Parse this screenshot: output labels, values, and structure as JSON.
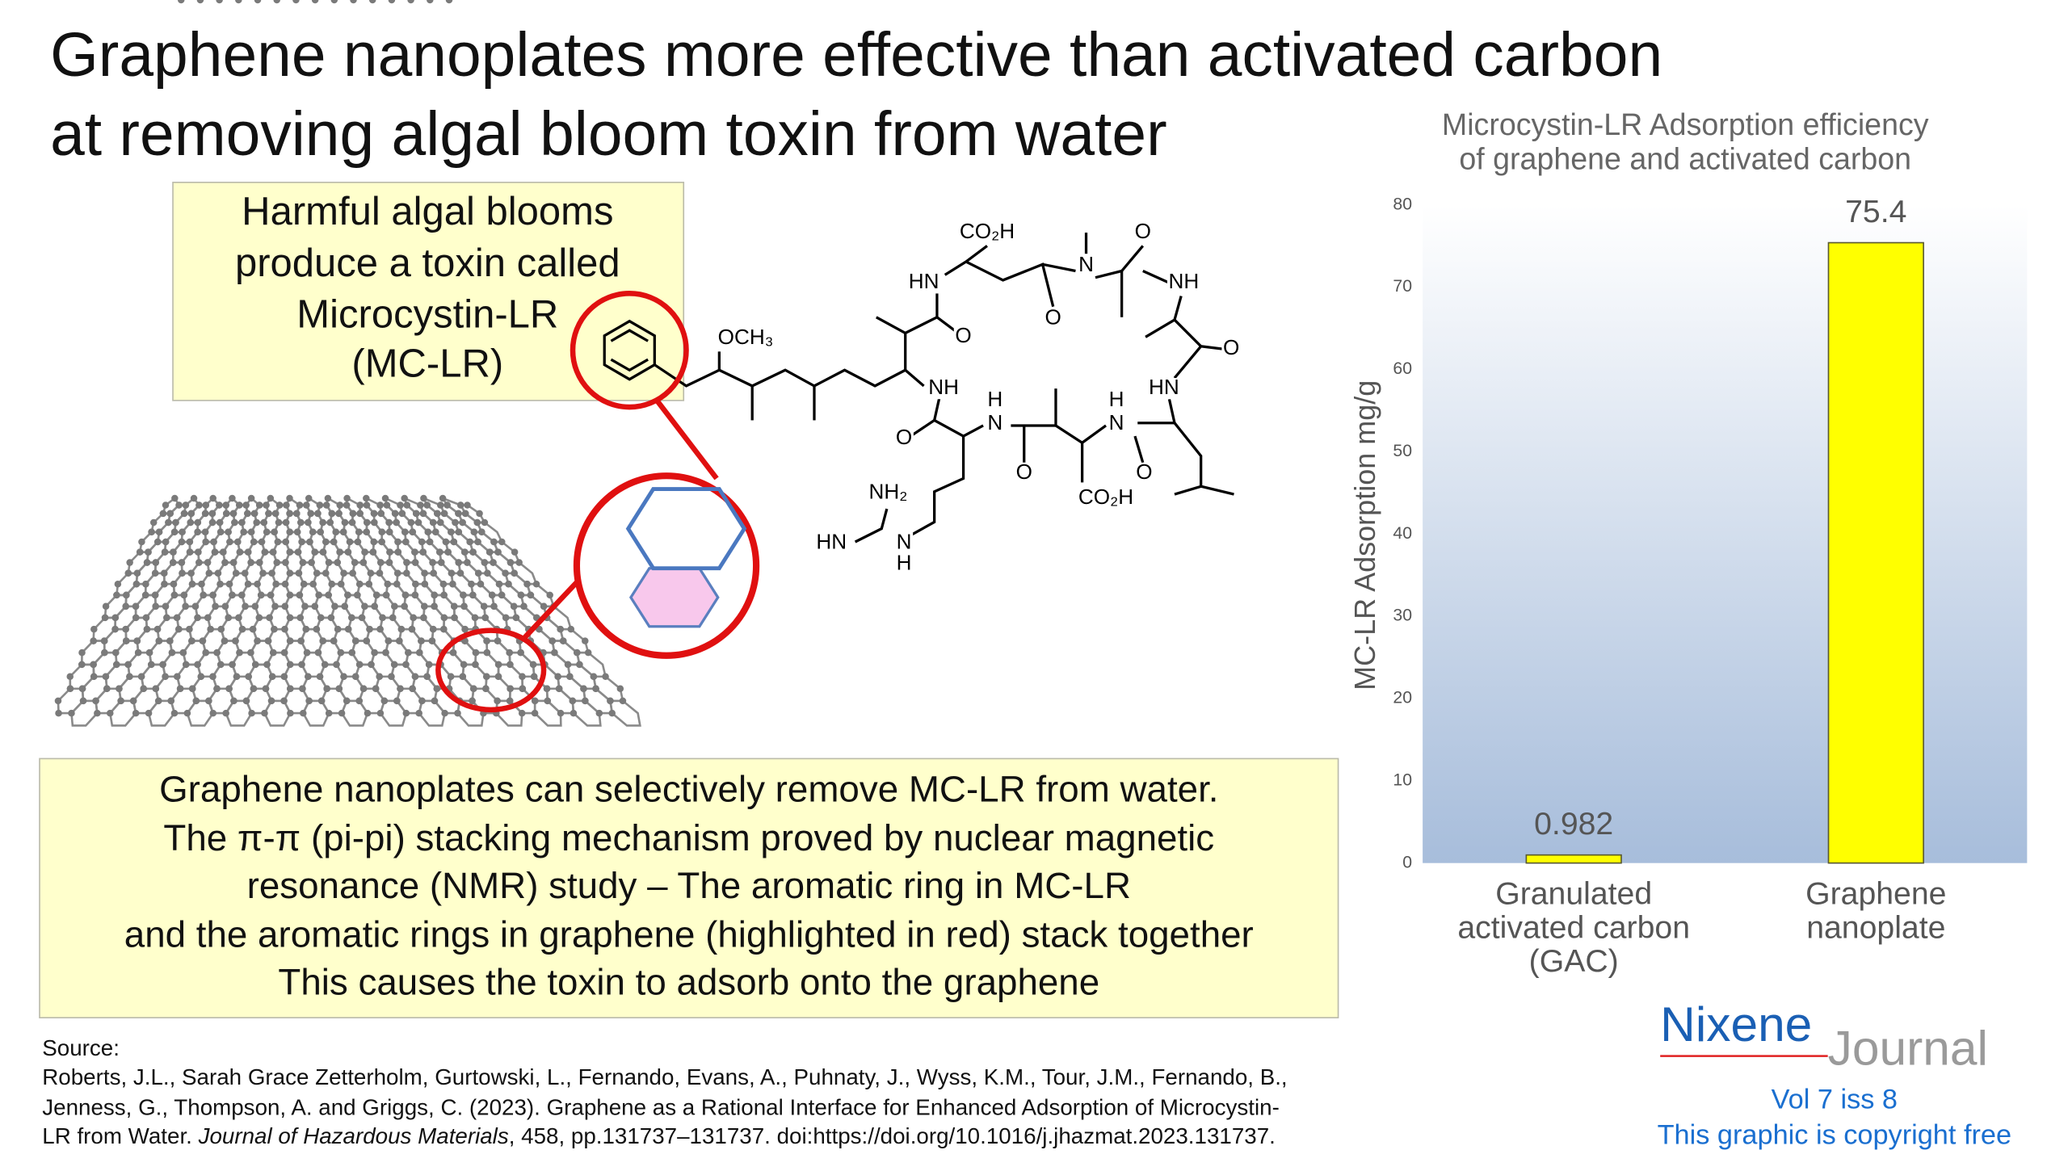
{
  "title": [
    "Graphene nanoplates more effective than activated carbon",
    "at removing algal bloom toxin from water"
  ],
  "callout": [
    "Harmful algal blooms",
    "produce a toxin called",
    "Microcystin-LR",
    "(MC-LR)"
  ],
  "molecule_labels": [
    "CO₂H",
    "HN",
    "N",
    "O",
    "NH",
    "O",
    "O",
    "O",
    "OCH₃",
    "HN",
    "NH",
    "H",
    "N",
    "H",
    "N",
    "O",
    "O",
    "O",
    "CO₂H",
    "NH₂",
    "HN",
    "N",
    "H"
  ],
  "description": [
    "Graphene nanoplates can selectively remove MC-LR from water.",
    "The π-π (pi-pi) stacking mechanism proved by nuclear magnetic",
    "resonance (NMR) study – The aromatic ring in MC-LR",
    "and the aromatic rings in graphene (highlighted in red) stack together",
    "This causes the toxin to adsorb onto the graphene"
  ],
  "source": {
    "label": "Source:",
    "lines": [
      "Roberts, J.L., Sarah Grace Zetterholm, Gurtowski, L., Fernando, Evans, A., Puhnaty, J., Wyss, K.M., Tour, J.M., Fernando, B.,",
      "Jenness, G., Thompson, A. and Griggs, C. (2023). Graphene as a Rational Interface for Enhanced Adsorption of Microcystin-"
    ],
    "last": {
      "before": "LR from Water. ",
      "journal": "Journal of Hazardous Materials",
      "after": ", 458, pp.131737–131737. doi:https://doi.org/10.1016/j.jhazmat.2023.131737."
    }
  },
  "logo": {
    "brand": "Nixene",
    "word": "Journal",
    "issue": "Vol 7 iss 8",
    "note": "This graphic is copyright free"
  },
  "chart_data": {
    "type": "bar",
    "title": [
      "Microcystin-LR Adsorption efficiency",
      "of graphene and activated carbon"
    ],
    "y_label": "MC-LR Adsorption mg/g",
    "categories": [
      "Granulated activated carbon (GAC)",
      "Graphene nanoplate"
    ],
    "values": [
      0.982,
      75.4
    ],
    "color": "#ffff00",
    "ylim": [
      0,
      80
    ],
    "yticks": [
      0,
      10,
      20,
      30,
      40,
      50,
      60,
      70,
      80
    ],
    "grid": false
  }
}
